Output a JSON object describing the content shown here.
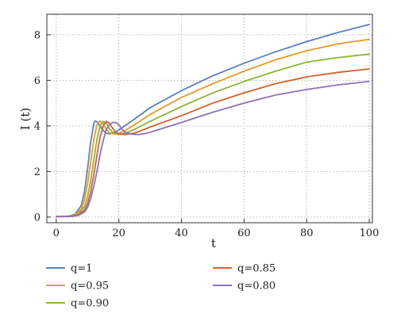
{
  "chart_data": {
    "type": "line",
    "xlabel": "t",
    "ylabel": "I (t)",
    "xlim": [
      -3,
      101
    ],
    "ylim": [
      -0.25,
      8.9
    ],
    "xticks": [
      "0",
      "20",
      "40",
      "60",
      "80",
      "100"
    ],
    "yticks": [
      "0",
      "2",
      "4",
      "6",
      "8"
    ],
    "grid": "dashed",
    "legend_position": "bottom",
    "series": [
      {
        "name": "q=1",
        "color": "#5b7fc0",
        "points": [
          [
            0,
            0.02
          ],
          [
            4,
            0.04
          ],
          [
            6,
            0.12
          ],
          [
            8,
            0.5
          ],
          [
            9,
            1.1
          ],
          [
            10,
            2.1
          ],
          [
            11,
            3.3
          ],
          [
            12,
            4.1
          ],
          [
            12.5,
            4.22
          ],
          [
            13,
            4.18
          ],
          [
            14,
            4.0
          ],
          [
            15,
            3.8
          ],
          [
            16,
            3.68
          ],
          [
            17,
            3.65
          ],
          [
            18,
            3.68
          ],
          [
            20,
            3.82
          ],
          [
            25,
            4.3
          ],
          [
            30,
            4.8
          ],
          [
            40,
            5.55
          ],
          [
            50,
            6.2
          ],
          [
            60,
            6.75
          ],
          [
            70,
            7.25
          ],
          [
            80,
            7.7
          ],
          [
            90,
            8.1
          ],
          [
            100,
            8.45
          ]
        ]
      },
      {
        "name": "q=0.95",
        "color": "#e49a2d",
        "points": [
          [
            0,
            0.02
          ],
          [
            4,
            0.035
          ],
          [
            6,
            0.09
          ],
          [
            8,
            0.35
          ],
          [
            9,
            0.75
          ],
          [
            10,
            1.45
          ],
          [
            11,
            2.4
          ],
          [
            12,
            3.4
          ],
          [
            13,
            4.05
          ],
          [
            14,
            4.22
          ],
          [
            15,
            4.1
          ],
          [
            16,
            3.85
          ],
          [
            17,
            3.7
          ],
          [
            18,
            3.65
          ],
          [
            19,
            3.65
          ],
          [
            20,
            3.68
          ],
          [
            22,
            3.8
          ],
          [
            25,
            4.05
          ],
          [
            30,
            4.5
          ],
          [
            40,
            5.25
          ],
          [
            50,
            5.85
          ],
          [
            60,
            6.4
          ],
          [
            70,
            6.9
          ],
          [
            80,
            7.3
          ],
          [
            90,
            7.6
          ],
          [
            100,
            7.8
          ]
        ]
      },
      {
        "name": "q=0.90",
        "color": "#8db33a",
        "points": [
          [
            0,
            0.02
          ],
          [
            5,
            0.04
          ],
          [
            7,
            0.12
          ],
          [
            9,
            0.45
          ],
          [
            10,
            0.9
          ],
          [
            11,
            1.6
          ],
          [
            12,
            2.5
          ],
          [
            13,
            3.4
          ],
          [
            14,
            4.0
          ],
          [
            15,
            4.2
          ],
          [
            16,
            4.12
          ],
          [
            17,
            3.88
          ],
          [
            18,
            3.72
          ],
          [
            19,
            3.65
          ],
          [
            20,
            3.63
          ],
          [
            22,
            3.68
          ],
          [
            25,
            3.85
          ],
          [
            30,
            4.2
          ],
          [
            40,
            4.85
          ],
          [
            50,
            5.45
          ],
          [
            60,
            5.95
          ],
          [
            70,
            6.4
          ],
          [
            80,
            6.8
          ],
          [
            90,
            7.0
          ],
          [
            100,
            7.15
          ]
        ]
      },
      {
        "name": "q=0.85",
        "color": "#d2612e",
        "points": [
          [
            0,
            0.02
          ],
          [
            5,
            0.035
          ],
          [
            7,
            0.09
          ],
          [
            9,
            0.3
          ],
          [
            10,
            0.6
          ],
          [
            11,
            1.1
          ],
          [
            12,
            1.85
          ],
          [
            13,
            2.7
          ],
          [
            14,
            3.5
          ],
          [
            15,
            4.0
          ],
          [
            16,
            4.2
          ],
          [
            17,
            4.12
          ],
          [
            18,
            3.9
          ],
          [
            19,
            3.72
          ],
          [
            20,
            3.65
          ],
          [
            22,
            3.62
          ],
          [
            25,
            3.68
          ],
          [
            30,
            3.95
          ],
          [
            40,
            4.45
          ],
          [
            50,
            5.0
          ],
          [
            60,
            5.45
          ],
          [
            70,
            5.85
          ],
          [
            80,
            6.15
          ],
          [
            90,
            6.35
          ],
          [
            100,
            6.5
          ]
        ]
      },
      {
        "name": "q=0.80",
        "color": "#8e72b8",
        "points": [
          [
            0,
            0.02
          ],
          [
            5,
            0.03
          ],
          [
            7,
            0.07
          ],
          [
            9,
            0.22
          ],
          [
            10,
            0.42
          ],
          [
            11,
            0.8
          ],
          [
            12,
            1.35
          ],
          [
            13,
            2.0
          ],
          [
            14,
            2.75
          ],
          [
            15,
            3.35
          ],
          [
            16,
            3.85
          ],
          [
            17,
            4.05
          ],
          [
            18,
            4.15
          ],
          [
            19,
            4.15
          ],
          [
            20,
            4.05
          ],
          [
            21,
            3.85
          ],
          [
            22,
            3.72
          ],
          [
            24,
            3.64
          ],
          [
            26,
            3.62
          ],
          [
            28,
            3.65
          ],
          [
            30,
            3.72
          ],
          [
            40,
            4.15
          ],
          [
            50,
            4.6
          ],
          [
            60,
            5.0
          ],
          [
            70,
            5.35
          ],
          [
            80,
            5.6
          ],
          [
            90,
            5.8
          ],
          [
            100,
            5.95
          ]
        ]
      }
    ]
  }
}
